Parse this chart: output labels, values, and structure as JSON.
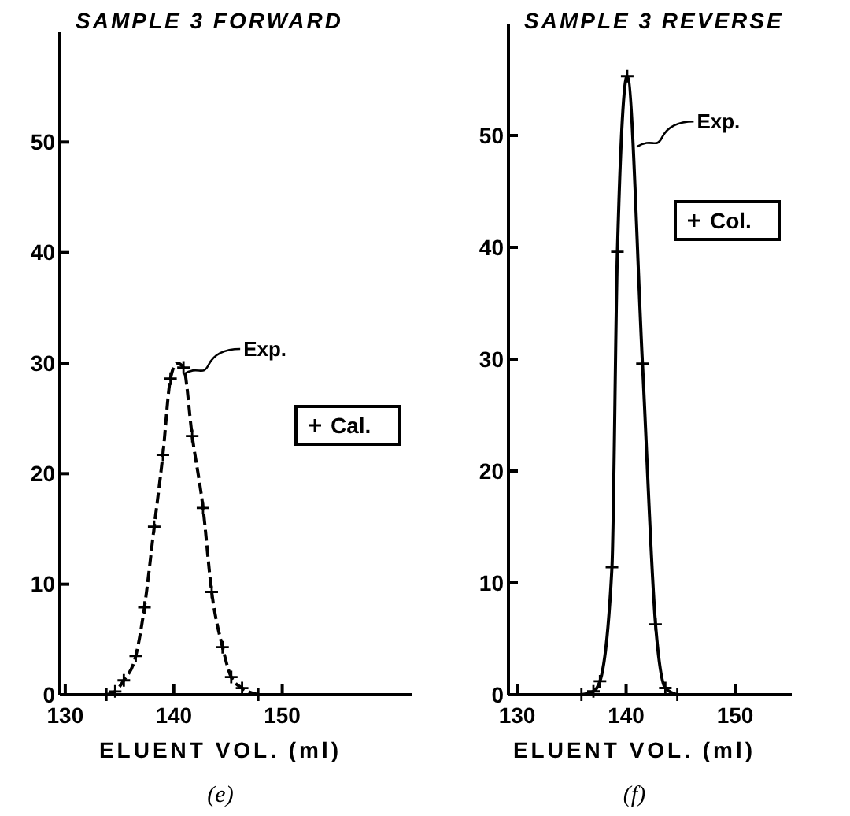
{
  "chart_data": [
    {
      "type": "scatter",
      "title": "SAMPLE 3 FORWARD",
      "xlabel": "ELUENT VOL. (ml)",
      "xlim": [
        129.5,
        162
      ],
      "ylim": [
        0,
        60
      ],
      "xticks": [
        130,
        140,
        150
      ],
      "yticks": [
        0,
        10,
        20,
        30,
        40,
        50
      ],
      "legend": "right",
      "marker": "cross",
      "grid": false,
      "series": [
        {
          "type": "line",
          "color": "#000000",
          "line_style": "dashed",
          "marker": "none",
          "x": [
            133.8,
            134.6,
            135.4,
            136.5,
            137.3,
            138.2,
            139.0,
            139.7,
            140.3,
            140.9,
            141.7,
            142.7,
            143.5,
            144.5,
            145.3,
            146.3,
            147.8
          ],
          "values": [
            0,
            0.3,
            1.3,
            3.5,
            7.9,
            15.2,
            21.7,
            28.6,
            30,
            29.6,
            23.4,
            16.9,
            9.3,
            4.3,
            1.6,
            0.6,
            0
          ]
        },
        {
          "name": "Cal.",
          "color": "#000000",
          "x": [
            133.8,
            134.6,
            135.4,
            136.5,
            137.3,
            138.2,
            139.0,
            139.7,
            140.9,
            141.7,
            142.7,
            143.5,
            144.5,
            145.3,
            146.3,
            147.8
          ],
          "values": [
            0,
            0.3,
            1.3,
            3.5,
            7.9,
            15.2,
            21.7,
            28.6,
            29.6,
            23.4,
            16.9,
            9.3,
            4.3,
            1.6,
            0.6,
            0
          ]
        }
      ],
      "annotations": [
        {
          "text": "Exp.",
          "x": 140.9,
          "y": 29
        },
        "(e)"
      ]
    },
    {
      "type": "scatter",
      "title": "SAMPLE 3 REVERSE",
      "xlabel": "ELUENT VOL. (ml)",
      "xlim": [
        129.2,
        155.2
      ],
      "ylim": [
        0,
        60
      ],
      "xticks": [
        130,
        140,
        150
      ],
      "yticks": [
        0,
        10,
        20,
        30,
        40,
        50
      ],
      "legend": "right",
      "marker": "cross",
      "grid": false,
      "series": [
        {
          "type": "line",
          "color": "#000000",
          "line_style": "solid",
          "marker": "none",
          "x": [
            135.9,
            137.0,
            137.6,
            138.7,
            139.2,
            140.1,
            141.5,
            142.7,
            143.6,
            144.7
          ],
          "values": [
            0,
            0.3,
            1.2,
            11.4,
            39.6,
            55.3,
            29.6,
            6.3,
            0.6,
            0
          ]
        },
        {
          "name": "Col.",
          "color": "#000000",
          "x": [
            135.9,
            137.0,
            137.6,
            138.7,
            139.2,
            140.1,
            141.5,
            142.7,
            143.6,
            144.7
          ],
          "values": [
            0,
            0.3,
            1.2,
            11.4,
            39.6,
            55.3,
            29.6,
            6.3,
            0.6,
            0
          ]
        }
      ],
      "annotations": [
        {
          "text": "Exp.",
          "x": 141,
          "y": 49
        },
        "(f)"
      ]
    }
  ]
}
